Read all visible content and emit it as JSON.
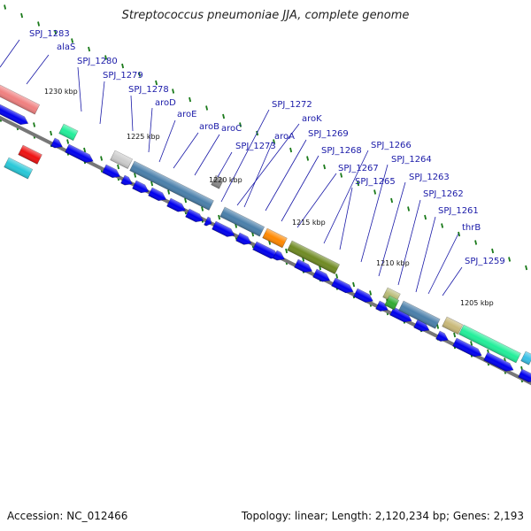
{
  "title": "Streptococcus pneumoniae JJA, complete genome",
  "footer": {
    "accession": "Accession: NC_012466",
    "topology": "Topology: linear; Length: 2,120,234 bp; Genes: 2,193"
  },
  "colors": {
    "label": "#1a1aa8",
    "leader": "#1a1aa8",
    "axis": "#777777",
    "tick": "#1a7a1a",
    "blue_gene": "#0000ee"
  },
  "kbp_labels": [
    "1230 kbp",
    "1225 kbp",
    "1220 kbp",
    "1215 kbp",
    "1210 kbp",
    "1205 kbp"
  ],
  "gene_labels": [
    "SPJ_1283",
    "alaS",
    "SPJ_1280",
    "SPJ_1279",
    "SPJ_1278",
    "aroD",
    "aroE",
    "aroB",
    "aroC",
    "SPJ_1273",
    "SPJ_1272",
    "aroK",
    "aroA",
    "SPJ_1269",
    "SPJ_1268",
    "SPJ_1267",
    "SPJ_1266",
    "SPJ_1265",
    "SPJ_1264",
    "SPJ_1263",
    "SPJ_1262",
    "SPJ_1261",
    "thrB",
    "SPJ_1259"
  ]
}
